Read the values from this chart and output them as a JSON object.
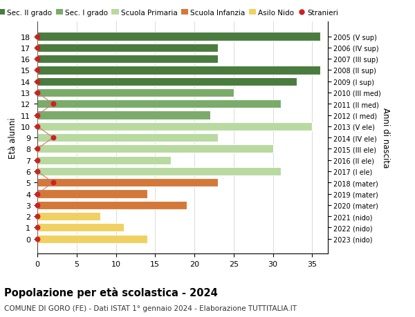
{
  "ages": [
    18,
    17,
    16,
    15,
    14,
    13,
    12,
    11,
    10,
    9,
    8,
    7,
    6,
    5,
    4,
    3,
    2,
    1,
    0
  ],
  "years_labels": [
    "2005 (V sup)",
    "2006 (IV sup)",
    "2007 (III sup)",
    "2008 (II sup)",
    "2009 (I sup)",
    "2010 (III med)",
    "2011 (II med)",
    "2012 (I med)",
    "2013 (V ele)",
    "2014 (IV ele)",
    "2015 (III ele)",
    "2016 (II ele)",
    "2017 (I ele)",
    "2018 (mater)",
    "2019 (mater)",
    "2020 (mater)",
    "2021 (nido)",
    "2022 (nido)",
    "2023 (nido)"
  ],
  "bar_values": [
    36,
    23,
    23,
    36,
    33,
    25,
    31,
    22,
    35,
    23,
    30,
    17,
    31,
    23,
    14,
    19,
    8,
    11,
    14
  ],
  "bar_colors": [
    "#4a7c3f",
    "#4a7c3f",
    "#4a7c3f",
    "#4a7c3f",
    "#4a7c3f",
    "#7aab6a",
    "#7aab6a",
    "#7aab6a",
    "#b8d9a0",
    "#b8d9a0",
    "#b8d9a0",
    "#b8d9a0",
    "#b8d9a0",
    "#d4783a",
    "#d4783a",
    "#d4783a",
    "#f0d060",
    "#f0d060",
    "#f0d060"
  ],
  "stranieri_x": [
    0,
    0,
    0,
    0,
    0,
    0,
    2,
    0,
    0,
    2,
    0,
    0,
    0,
    2,
    0,
    0,
    0,
    0,
    0
  ],
  "stranieri_color": "#cc2222",
  "stranieri_line_color": "#cc7777",
  "xlim": [
    0,
    37
  ],
  "xticks": [
    0,
    5,
    10,
    15,
    20,
    25,
    30,
    35
  ],
  "ylabel": "Età alunni",
  "right_ylabel": "Anni di nascita",
  "legend_labels": [
    "Sec. II grado",
    "Sec. I grado",
    "Scuola Primaria",
    "Scuola Infanzia",
    "Asilo Nido",
    "Stranieri"
  ],
  "legend_colors": [
    "#4a7c3f",
    "#7aab6a",
    "#b8d9a0",
    "#d4783a",
    "#f0d060",
    "#cc2222"
  ],
  "title": "Popolazione per età scolastica - 2024",
  "subtitle": "COMUNE DI GORO (FE) - Dati ISTAT 1° gennaio 2024 - Elaborazione TUTTITALIA.IT",
  "background_color": "#ffffff",
  "grid_color": "#cccccc"
}
